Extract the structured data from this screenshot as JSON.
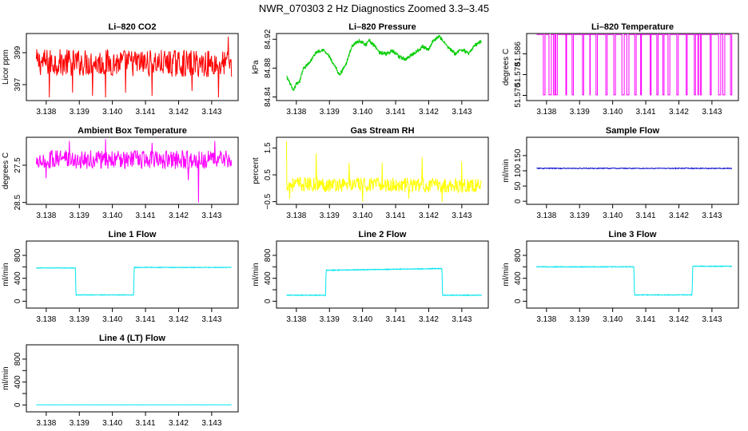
{
  "figure": {
    "title": "NWR_070303  2 Hz Diagnostics Zoomed 3.3–3.45"
  },
  "chart_data": [
    {
      "type": "line",
      "title": "Li–820 CO2",
      "ylabel": "Licor ppm",
      "color": "#ff0000",
      "xlim": [
        3.1374,
        3.1438
      ],
      "ylim": [
        396.0,
        400.2
      ],
      "xticks": [
        3.138,
        3.139,
        3.14,
        3.141,
        3.142,
        3.143
      ],
      "xticklabels": [
        "3.138",
        "3.139",
        "3.140",
        "3.141",
        "3.142",
        "3.143"
      ],
      "yticks": [
        397,
        399
      ],
      "yticklabels": [
        "397",
        "399"
      ],
      "series": [
        {
          "name": "CO2",
          "kind": "noise",
          "x_start": 3.1377,
          "x_end": 3.1436,
          "segments": [
            [
              3.1377,
              398.4
            ],
            [
              3.1436,
              398.3
            ]
          ],
          "noise": 1.7,
          "spikes": [
            [
              3.1381,
              396.2
            ],
            [
              3.1388,
              396.5
            ],
            [
              3.1394,
              396.3
            ],
            [
              3.1398,
              396.2
            ],
            [
              3.1404,
              396.5
            ],
            [
              3.1412,
              396.3
            ],
            [
              3.1424,
              396.6
            ],
            [
              3.1432,
              396.2
            ],
            [
              3.1435,
              400.0
            ]
          ]
        }
      ]
    },
    {
      "type": "line",
      "title": "Li–820 Pressure",
      "ylabel": "kPa",
      "color": "#00cc00",
      "xlim": [
        3.1374,
        3.1438
      ],
      "ylim": [
        84.835,
        84.928
      ],
      "xticks": [
        3.138,
        3.139,
        3.14,
        3.141,
        3.142,
        3.143
      ],
      "xticklabels": [
        "3.138",
        "3.139",
        "3.140",
        "3.141",
        "3.142",
        "3.143"
      ],
      "yticks": [
        84.84,
        84.88,
        84.92
      ],
      "yticklabels": [
        "84.84",
        "84.88",
        "84.92"
      ],
      "series": [
        {
          "name": "Pressure",
          "kind": "steps",
          "x_start": 3.1377,
          "x_end": 3.1436,
          "segments": [
            [
              3.1377,
              84.868
            ],
            [
              3.1378,
              84.86
            ],
            [
              3.1379,
              84.848
            ],
            [
              3.138,
              84.858
            ],
            [
              3.1381,
              84.862
            ],
            [
              3.1382,
              84.878
            ],
            [
              3.1384,
              84.888
            ],
            [
              3.1386,
              84.902
            ],
            [
              3.1388,
              84.906
            ],
            [
              3.139,
              84.896
            ],
            [
              3.1391,
              84.886
            ],
            [
              3.1392,
              84.88
            ],
            [
              3.1393,
              84.87
            ],
            [
              3.1395,
              84.886
            ],
            [
              3.1396,
              84.9
            ],
            [
              3.1397,
              84.912
            ],
            [
              3.1399,
              84.918
            ],
            [
              3.1401,
              84.912
            ],
            [
              3.1402,
              84.918
            ],
            [
              3.1404,
              84.91
            ],
            [
              3.1405,
              84.902
            ],
            [
              3.1407,
              84.9
            ],
            [
              3.1409,
              84.904
            ],
            [
              3.1411,
              84.896
            ],
            [
              3.1413,
              84.892
            ],
            [
              3.1414,
              84.896
            ],
            [
              3.1416,
              84.902
            ],
            [
              3.1418,
              84.91
            ],
            [
              3.142,
              84.906
            ],
            [
              3.1421,
              84.916
            ],
            [
              3.1423,
              84.924
            ],
            [
              3.1424,
              84.92
            ],
            [
              3.1426,
              84.908
            ],
            [
              3.1428,
              84.9
            ],
            [
              3.143,
              84.906
            ],
            [
              3.1432,
              84.9
            ],
            [
              3.1434,
              84.912
            ],
            [
              3.1436,
              84.918
            ]
          ],
          "noise": 0.005,
          "spikes": []
        }
      ]
    },
    {
      "type": "line",
      "title": "Li–820 Temperature",
      "ylabel": "degrees C",
      "color": "#ff00ff",
      "xlim": [
        3.1374,
        3.1438
      ],
      "ylim": [
        51.568,
        51.5938
      ],
      "xticks": [
        3.138,
        3.139,
        3.14,
        3.141,
        3.142,
        3.143
      ],
      "xticklabels": [
        "3.138",
        "3.139",
        "3.140",
        "3.141",
        "3.142",
        "3.143"
      ],
      "yticks": [
        51.57,
        51.578,
        51.586
      ],
      "yticklabels": [
        "51.570",
        "51.578",
        "51.586"
      ],
      "series": [
        {
          "name": "Temperature",
          "kind": "binary",
          "x_start": 3.1377,
          "x_end": 3.1436,
          "levels": [
            51.5702,
            51.5934
          ],
          "segments": [],
          "noise": 0,
          "spikes": []
        }
      ]
    },
    {
      "type": "line",
      "title": "Ambient Box Temperature",
      "ylabel": "degrees C",
      "color": "#ff00ff",
      "xlim": [
        3.1374,
        3.1438
      ],
      "ylim": [
        28.55,
        26.75
      ],
      "xticks": [
        3.138,
        3.139,
        3.14,
        3.141,
        3.142,
        3.143
      ],
      "xticklabels": [
        "3.138",
        "3.139",
        "3.140",
        "3.141",
        "3.142",
        "3.143"
      ],
      "yticks": [
        27.5,
        28.5
      ],
      "yticklabels": [
        "27.5",
        "28.5"
      ],
      "series": [
        {
          "name": "Ambient",
          "kind": "noise",
          "x_start": 3.1377,
          "x_end": 3.1436,
          "segments": [
            [
              3.1377,
              27.35
            ],
            [
              3.1436,
              27.35
            ]
          ],
          "noise": 0.5,
          "spikes": [
            [
              3.138,
              27.85
            ],
            [
              3.1387,
              26.85
            ],
            [
              3.1398,
              26.8
            ],
            [
              3.1412,
              26.9
            ],
            [
              3.1423,
              27.9
            ],
            [
              3.1426,
              28.5
            ],
            [
              3.1431,
              26.85
            ]
          ]
        }
      ]
    },
    {
      "type": "line",
      "title": "Gas Stream RH",
      "ylabel": "percent",
      "color": "#ffff00",
      "xlim": [
        3.1374,
        3.1438
      ],
      "ylim": [
        -0.6,
        1.9
      ],
      "xticks": [
        3.138,
        3.139,
        3.14,
        3.141,
        3.142,
        3.143
      ],
      "xticklabels": [
        "3.138",
        "3.139",
        "3.140",
        "3.141",
        "3.142",
        "3.143"
      ],
      "yticks": [
        -0.5,
        0.5,
        1.5
      ],
      "yticklabels": [
        "−0.5",
        "0.5",
        "1.5"
      ],
      "series": [
        {
          "name": "RH",
          "kind": "noise",
          "x_start": 3.1377,
          "x_end": 3.1436,
          "segments": [
            [
              3.1377,
              0.15
            ],
            [
              3.1436,
              0.1
            ]
          ],
          "noise": 0.55,
          "spikes": [
            [
              3.1377,
              1.75
            ],
            [
              3.1378,
              -0.4
            ],
            [
              3.1386,
              1.3
            ],
            [
              3.1396,
              0.95
            ],
            [
              3.14,
              -0.5
            ],
            [
              3.1406,
              0.95
            ],
            [
              3.1414,
              -0.4
            ],
            [
              3.1418,
              1.15
            ],
            [
              3.1424,
              -0.5
            ],
            [
              3.143,
              1.0
            ]
          ]
        }
      ]
    },
    {
      "type": "line",
      "title": "Sample Flow",
      "ylabel": "ml/min",
      "color": "#0000cc",
      "xlim": [
        3.1374,
        3.1438
      ],
      "ylim": [
        -10,
        210
      ],
      "xticks": [
        3.138,
        3.139,
        3.14,
        3.141,
        3.142,
        3.143
      ],
      "xticklabels": [
        "3.138",
        "3.139",
        "3.140",
        "3.141",
        "3.142",
        "3.143"
      ],
      "yticks": [
        0,
        50,
        100,
        150
      ],
      "yticklabels": [
        "0",
        "50",
        "100",
        "150"
      ],
      "series": [
        {
          "name": "Sample Flow",
          "kind": "noise",
          "x_start": 3.1377,
          "x_end": 3.1436,
          "segments": [
            [
              3.1377,
              108
            ],
            [
              3.1436,
              108
            ]
          ],
          "noise": 3,
          "spikes": []
        }
      ]
    },
    {
      "type": "line",
      "title": "Line 1 Flow",
      "ylabel": "ml/min",
      "color": "#00e5ee",
      "xlim": [
        3.1374,
        3.1438
      ],
      "ylim": [
        -120,
        1050
      ],
      "xticks": [
        3.138,
        3.139,
        3.14,
        3.141,
        3.142,
        3.143
      ],
      "xticklabels": [
        "3.138",
        "3.139",
        "3.140",
        "3.141",
        "3.142",
        "3.143"
      ],
      "yticks": [
        0,
        200,
        400,
        600,
        800
      ],
      "yticklabels": [
        "0",
        "",
        "400",
        "",
        "800"
      ],
      "series": [
        {
          "name": "Line 1",
          "kind": "steps",
          "x_start": 3.1377,
          "x_end": 3.1436,
          "segments": [
            [
              3.1377,
              580
            ],
            [
              3.13888,
              580
            ],
            [
              3.1389,
              110
            ],
            [
              3.14064,
              110
            ],
            [
              3.14066,
              590
            ],
            [
              3.1436,
              590
            ]
          ],
          "noise": 10,
          "spikes": []
        }
      ]
    },
    {
      "type": "line",
      "title": "Line 2 Flow",
      "ylabel": "ml/min",
      "color": "#00e5ee",
      "xlim": [
        3.1374,
        3.1438
      ],
      "ylim": [
        -120,
        1050
      ],
      "xticks": [
        3.138,
        3.139,
        3.14,
        3.141,
        3.142,
        3.143
      ],
      "xticklabels": [
        "3.138",
        "3.139",
        "3.140",
        "3.141",
        "3.142",
        "3.143"
      ],
      "yticks": [
        0,
        200,
        400,
        600,
        800
      ],
      "yticklabels": [
        "0",
        "",
        "400",
        "",
        "800"
      ],
      "series": [
        {
          "name": "Line 2",
          "kind": "steps",
          "x_start": 3.1377,
          "x_end": 3.1436,
          "segments": [
            [
              3.1377,
              105
            ],
            [
              3.13888,
              105
            ],
            [
              3.1389,
              540
            ],
            [
              3.1424,
              570
            ],
            [
              3.14242,
              105
            ],
            [
              3.1436,
              105
            ]
          ],
          "noise": 12,
          "spikes": []
        }
      ]
    },
    {
      "type": "line",
      "title": "Line 3 Flow",
      "ylabel": "ml/min",
      "color": "#00e5ee",
      "xlim": [
        3.1374,
        3.1438
      ],
      "ylim": [
        -120,
        1050
      ],
      "xticks": [
        3.138,
        3.139,
        3.14,
        3.141,
        3.142,
        3.143
      ],
      "xticklabels": [
        "3.138",
        "3.139",
        "3.140",
        "3.141",
        "3.142",
        "3.143"
      ],
      "yticks": [
        0,
        200,
        400,
        600,
        800
      ],
      "yticklabels": [
        "0",
        "",
        "400",
        "",
        "800"
      ],
      "series": [
        {
          "name": "Line 3",
          "kind": "steps",
          "x_start": 3.1377,
          "x_end": 3.1436,
          "segments": [
            [
              3.1377,
              600
            ],
            [
              3.14064,
              600
            ],
            [
              3.14066,
              110
            ],
            [
              3.1424,
              110
            ],
            [
              3.14242,
              610
            ],
            [
              3.1436,
              610
            ]
          ],
          "noise": 12,
          "spikes": []
        }
      ]
    },
    {
      "type": "line",
      "title": "Line 4 (LT) Flow",
      "ylabel": "ml/min",
      "color": "#00e5ee",
      "xlim": [
        3.1374,
        3.1438
      ],
      "ylim": [
        -120,
        1050
      ],
      "xticks": [
        3.138,
        3.139,
        3.14,
        3.141,
        3.142,
        3.143
      ],
      "xticklabels": [
        "3.138",
        "3.139",
        "3.140",
        "3.141",
        "3.142",
        "3.143"
      ],
      "yticks": [
        0,
        200,
        400,
        600,
        800
      ],
      "yticklabels": [
        "0",
        "",
        "400",
        "",
        "800"
      ],
      "series": [
        {
          "name": "Line 4",
          "kind": "steps",
          "x_start": 3.1377,
          "x_end": 3.1436,
          "segments": [
            [
              3.1377,
              3
            ],
            [
              3.1436,
              3
            ]
          ],
          "noise": 2,
          "spikes": []
        }
      ]
    }
  ]
}
